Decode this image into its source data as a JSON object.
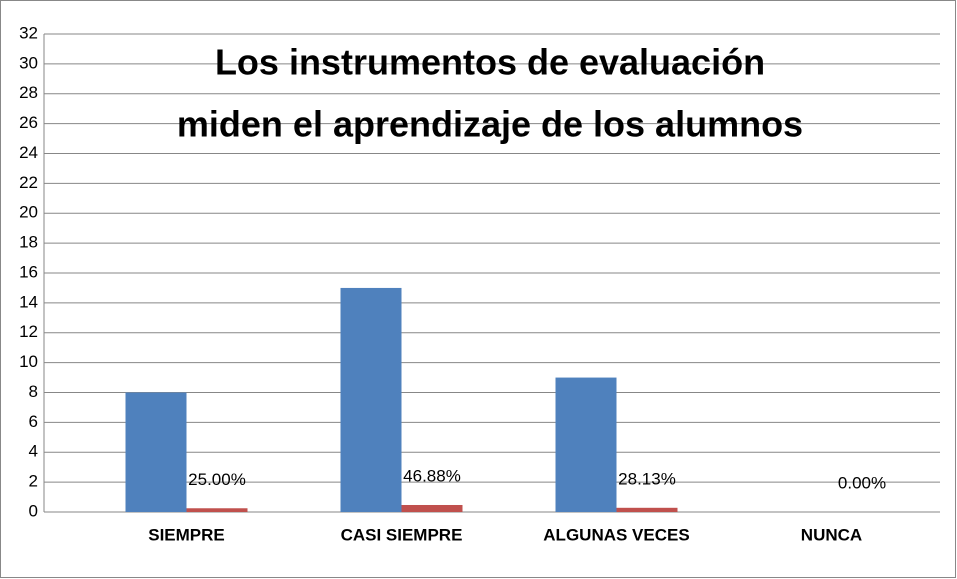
{
  "chart_data": {
    "type": "bar",
    "title": [
      "Los instrumentos de evaluación",
      "miden el aprendizaje de los alumnos"
    ],
    "categories": [
      "SIEMPRE",
      "CASI SIEMPRE",
      "ALGUNAS VECES",
      "NUNCA"
    ],
    "series": [
      {
        "color": "#4f81bd",
        "values": [
          8,
          15,
          9,
          0
        ]
      },
      {
        "color": "#c0504d",
        "values": [
          0.25,
          0.4688,
          0.2813,
          0
        ],
        "value_labels": [
          "25.00%",
          "46.88%",
          "28.13%",
          "0.00%"
        ]
      }
    ],
    "ylim": [
      0,
      32
    ],
    "yticks": [
      0,
      2,
      4,
      6,
      8,
      10,
      12,
      14,
      16,
      18,
      20,
      22,
      24,
      26,
      28,
      30,
      32
    ],
    "grid": true
  }
}
